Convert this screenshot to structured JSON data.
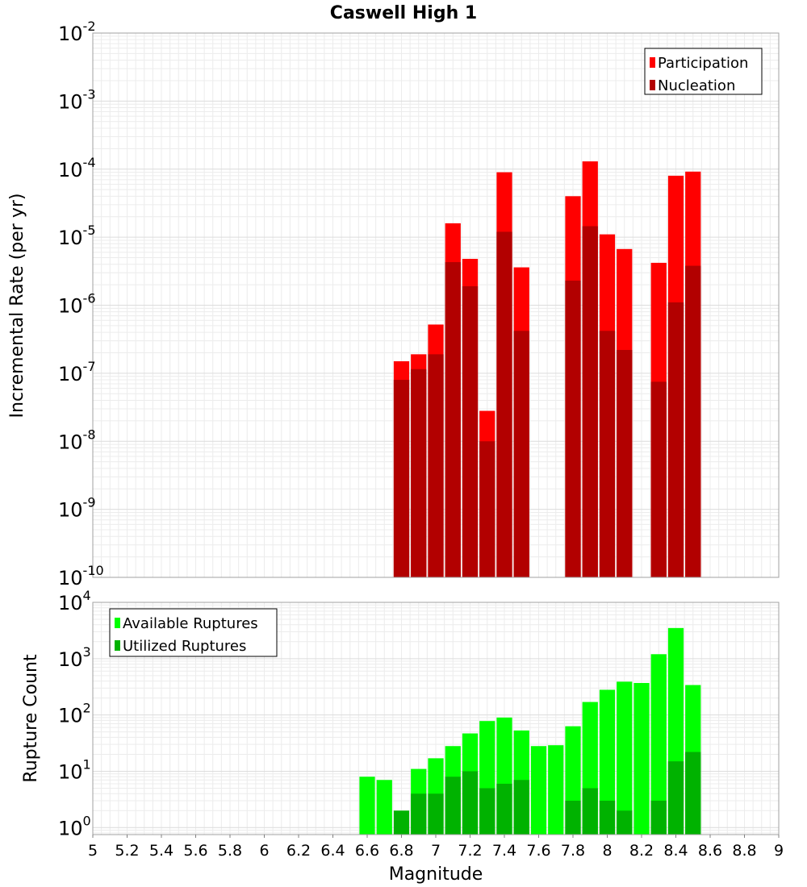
{
  "chart_data": [
    {
      "type": "bar",
      "title": "Caswell High 1",
      "ylabel": "Incremental Rate (per yr)",
      "xlabel": "",
      "yscale": "log",
      "ylim": [
        1e-10,
        0.01
      ],
      "xlim": [
        5,
        9
      ],
      "y_tick_exponents": [
        -2,
        -3,
        -4,
        -5,
        -6,
        -7,
        -8,
        -9,
        -10
      ],
      "legend_placement": "top-right",
      "grid": true,
      "bin_width": 0.1,
      "x": [
        6.8,
        6.9,
        7.0,
        7.1,
        7.2,
        7.3,
        7.4,
        7.5,
        7.8,
        7.9,
        8.0,
        8.1,
        8.3,
        8.4,
        8.5
      ],
      "series": [
        {
          "name": "Participation",
          "color": "#ff0000",
          "values": [
            1.5e-07,
            1.9e-07,
            5.2e-07,
            1.6e-05,
            4.8e-06,
            2.8e-08,
            9e-05,
            3.6e-06,
            4e-05,
            0.00013,
            1.1e-05,
            6.7e-06,
            4.2e-06,
            8e-05,
            9.2e-05
          ]
        },
        {
          "name": "Nucleation",
          "color": "#b20000",
          "values": [
            8e-08,
            1.15e-07,
            1.9e-07,
            4.3e-06,
            1.9e-06,
            1e-08,
            1.2e-05,
            4.2e-07,
            2.3e-06,
            1.45e-05,
            4.2e-07,
            2.2e-07,
            7.5e-08,
            1.1e-06,
            3.8e-06
          ]
        }
      ]
    },
    {
      "type": "bar",
      "title": "",
      "ylabel": "Rupture Count",
      "xlabel": "Magnitude",
      "yscale": "log",
      "ylim": [
        0.75,
        10000
      ],
      "xlim": [
        5,
        9
      ],
      "y_tick_exponents": [
        4,
        3,
        2,
        1,
        0
      ],
      "x_tick_labels": [
        "5",
        "5.2",
        "5.4",
        "5.6",
        "5.8",
        "6",
        "6.2",
        "6.4",
        "6.6",
        "6.8",
        "7",
        "7.2",
        "7.4",
        "7.6",
        "7.8",
        "8",
        "8.2",
        "8.4",
        "8.6",
        "8.8",
        "9"
      ],
      "legend_placement": "top-left",
      "grid": true,
      "bin_width": 0.1,
      "x": [
        6.6,
        6.7,
        6.8,
        6.9,
        7.0,
        7.1,
        7.2,
        7.3,
        7.4,
        7.5,
        7.6,
        7.7,
        7.8,
        7.9,
        8.0,
        8.1,
        8.2,
        8.3,
        8.4,
        8.5
      ],
      "series": [
        {
          "name": "Available Ruptures",
          "color": "#00ff00",
          "values": [
            8,
            7,
            0,
            11,
            17,
            28,
            47,
            78,
            90,
            53,
            28,
            29,
            63,
            170,
            280,
            390,
            370,
            1200,
            3500,
            340
          ]
        },
        {
          "name": "Utilized Ruptures",
          "color": "#00b200",
          "values": [
            0,
            0,
            2,
            4,
            4,
            8,
            10,
            5,
            6,
            7,
            0,
            0,
            3,
            5,
            3,
            2,
            0,
            3,
            15,
            22
          ]
        }
      ]
    }
  ]
}
